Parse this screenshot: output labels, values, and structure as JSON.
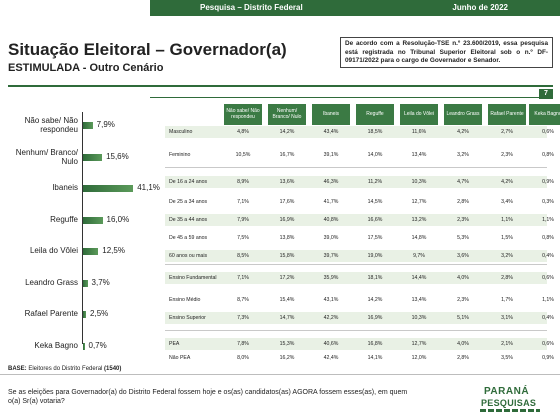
{
  "header": {
    "left": "Pesquisa – Distrito Federal",
    "right": "Junho de 2022"
  },
  "title": "Situação Eleitoral – Governador(a)",
  "subtitle": "ESTIMULADA - Outro Cenário",
  "notice": "De acordo com a Resolução-TSE n.º 23.600/2019, essa pesquisa está registrada no Tribunal Superior Eleitoral sob o n.º DF-09171/2022 para o cargo de Governador e Senador.",
  "page_number": "7",
  "chart_data": {
    "type": "bar",
    "categories": [
      "Não sabe/ Não respondeu",
      "Nenhum/ Branco/ Nulo",
      "Ibaneis",
      "Reguffe",
      "Leila do Vôlei",
      "Leandro Grass",
      "Rafael Parente",
      "Keka Bagno"
    ],
    "values": [
      7.9,
      15.6,
      41.1,
      16.0,
      12.5,
      3.7,
      2.5,
      0.7
    ],
    "value_labels": [
      "7,9%",
      "15,6%",
      "41,1%",
      "16,0%",
      "12,5%",
      "3,7%",
      "2,5%",
      "0,7%"
    ],
    "orientation": "horizontal",
    "xlim": [
      0,
      45
    ]
  },
  "table": {
    "columns": [
      "Não sabe/ Não respondeu",
      "Nenhum/ Branco/ Nulo",
      "Ibaneis",
      "Reguffe",
      "Leila do Vôlei",
      "Leandro Grass",
      "Rafael Parente",
      "Keka Bagno"
    ],
    "rows": [
      {
        "label": "Masculino",
        "values": [
          "4,8%",
          "14,2%",
          "43,4%",
          "18,5%",
          "11,6%",
          "4,2%",
          "2,7%",
          "0,6%"
        ]
      },
      {
        "label": "Feminino",
        "values": [
          "10,5%",
          "16,7%",
          "39,1%",
          "14,0%",
          "13,4%",
          "3,2%",
          "2,3%",
          "0,8%"
        ]
      },
      {
        "label": "De 16 a 24 anos",
        "values": [
          "8,9%",
          "13,6%",
          "46,3%",
          "11,2%",
          "10,3%",
          "4,7%",
          "4,2%",
          "0,9%"
        ]
      },
      {
        "label": "De 25 a 34 anos",
        "values": [
          "7,1%",
          "17,6%",
          "41,7%",
          "14,5%",
          "12,7%",
          "2,8%",
          "3,4%",
          "0,3%"
        ]
      },
      {
        "label": "De 35 a 44 anos",
        "values": [
          "7,9%",
          "16,9%",
          "40,8%",
          "16,6%",
          "13,2%",
          "2,3%",
          "1,1%",
          "1,1%"
        ]
      },
      {
        "label": "De 45 a 59 anos",
        "values": [
          "7,5%",
          "13,8%",
          "39,0%",
          "17,5%",
          "14,8%",
          "5,3%",
          "1,5%",
          "0,8%"
        ]
      },
      {
        "label": "60 anos ou mais",
        "values": [
          "8,5%",
          "15,8%",
          "39,7%",
          "19,0%",
          "9,7%",
          "3,6%",
          "3,2%",
          "0,4%"
        ]
      },
      {
        "label": "Ensino Fundamental",
        "values": [
          "7,1%",
          "17,2%",
          "35,9%",
          "18,1%",
          "14,4%",
          "4,0%",
          "2,8%",
          "0,6%"
        ]
      },
      {
        "label": "Ensino Médio",
        "values": [
          "8,7%",
          "15,4%",
          "43,1%",
          "14,2%",
          "13,4%",
          "2,3%",
          "1,7%",
          "1,1%"
        ]
      },
      {
        "label": "Ensino Superior",
        "values": [
          "7,3%",
          "14,7%",
          "42,2%",
          "16,9%",
          "10,3%",
          "5,1%",
          "3,1%",
          "0,4%"
        ]
      },
      {
        "label": "PEA",
        "values": [
          "7,8%",
          "15,3%",
          "40,6%",
          "16,8%",
          "12,7%",
          "4,0%",
          "2,1%",
          "0,6%"
        ]
      },
      {
        "label": "Não PEA",
        "values": [
          "8,0%",
          "16,2%",
          "42,4%",
          "14,1%",
          "12,0%",
          "2,8%",
          "3,5%",
          "0,9%"
        ]
      }
    ]
  },
  "base": {
    "label": "BASE:",
    "text": "Eleitores do Distrito Federal",
    "count": "(1540)"
  },
  "question": "Se as eleições para Governador(a) do Distrito Federal fossem hoje e os(as) candidatos(as) AGORA fossem esses(as), em quem o(a) Sr(a) votaria?",
  "logo": {
    "line1": "PARANÁ",
    "line2": "PESQUISAS"
  },
  "colors": {
    "brand_green": "#2f6b3a",
    "stripe": "#e9f1e5"
  }
}
